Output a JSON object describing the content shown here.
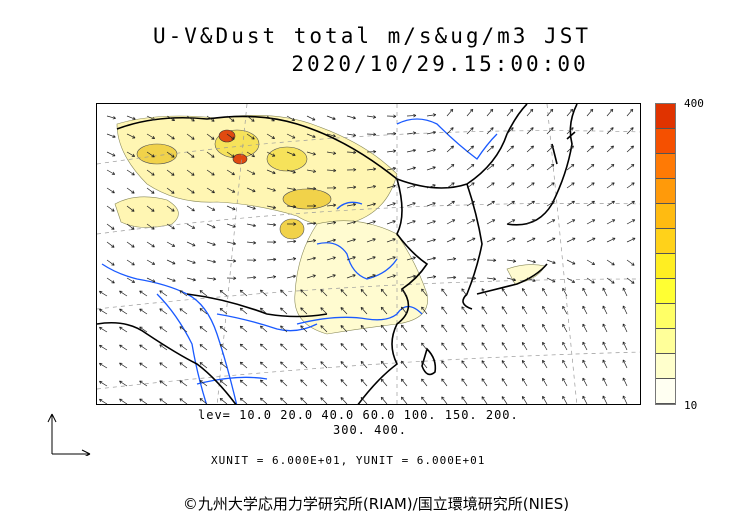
{
  "title": {
    "line1": "U-V&Dust total m/s&ug/m3 JST",
    "line2": "2020/10/29.15:00:00"
  },
  "colorbar": {
    "max_label": "400",
    "min_label": "10",
    "colors": [
      "#fffff2",
      "#ffffcc",
      "#ffff99",
      "#ffff66",
      "#ffff33",
      "#ffee22",
      "#ffd21a",
      "#ffbb11",
      "#ff9a0a",
      "#ff7a05",
      "#f55000",
      "#e03300"
    ]
  },
  "levels": {
    "line1": "lev= 10.0 20.0 40.0 60.0 100. 150. 200.",
    "line2": "300. 400."
  },
  "units": "XUNIT = 6.000E+01, YUNIT = 6.000E+01",
  "credit": "©九州大学応用力学研究所(RIAM)/国立環境研究所(NIES)",
  "style": {
    "coast": "#000000",
    "river": "#1a5aff",
    "grid": "#9a9a9a",
    "dust_low": "#ffffd4",
    "dust_mid": "#f4e96a",
    "dust_high": "#e2a21c",
    "dust_max": "#e04a10"
  }
}
